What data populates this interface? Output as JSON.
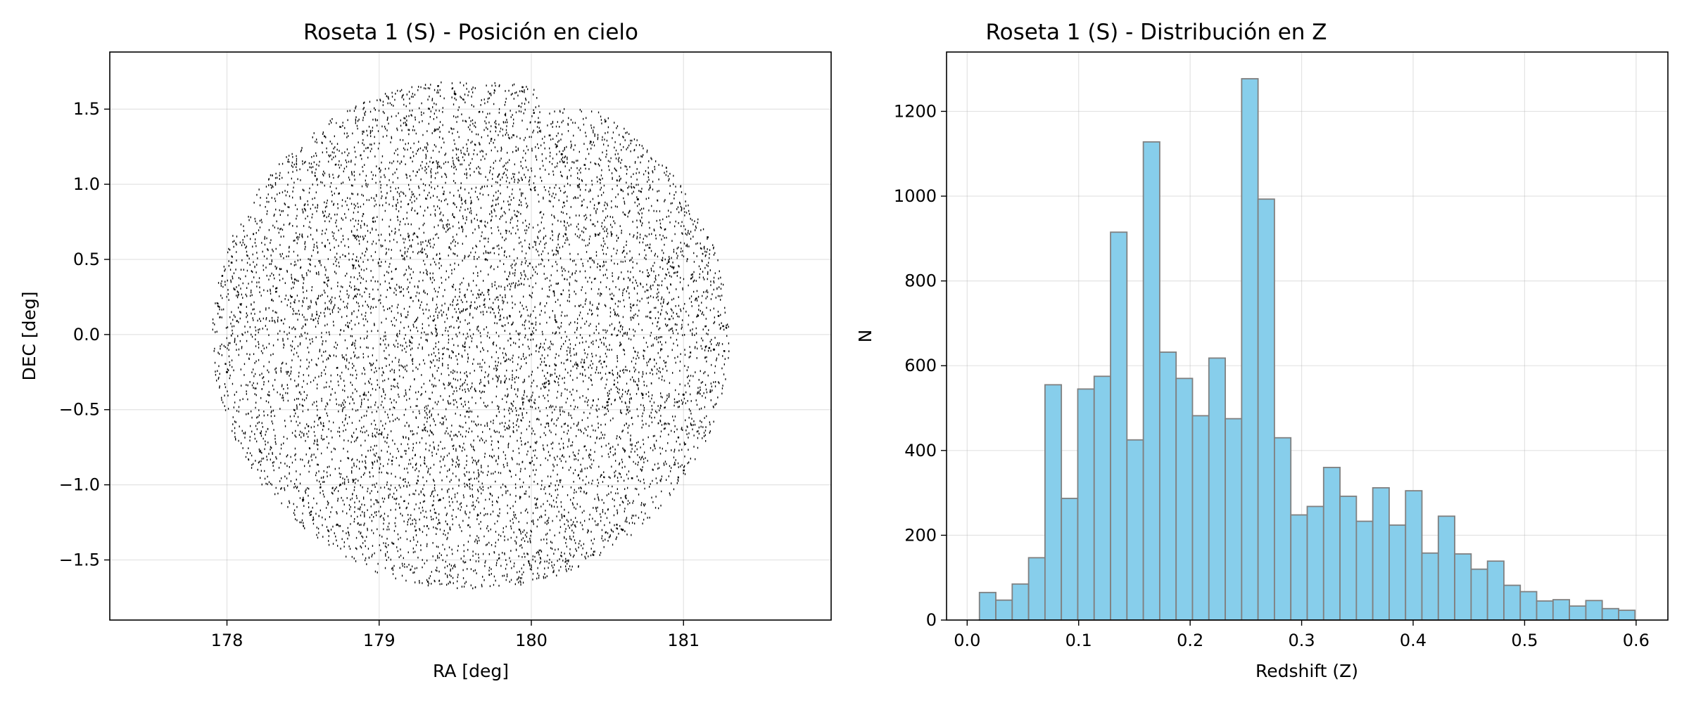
{
  "chart_data": [
    {
      "type": "scatter",
      "title": "Roseta 1 (S) - Posición en cielo",
      "xlabel": "RA [deg]",
      "ylabel": "DEC [deg]",
      "xlim": [
        177.23,
        181.97
      ],
      "ylim": [
        -1.9,
        1.88
      ],
      "xticks": [
        178,
        179,
        180,
        181
      ],
      "xtick_labels": [
        "178",
        "179",
        "180",
        "181"
      ],
      "yticks": [
        -1.5,
        -1.0,
        -0.5,
        0.0,
        0.5,
        1.0,
        1.5
      ],
      "ytick_labels": [
        "−1.5",
        "−1.0",
        "−0.5",
        "0.0",
        "0.5",
        "1.0",
        "1.5"
      ],
      "grid": true,
      "marker_color": "#000000",
      "footprint": {
        "center_ra": 179.6,
        "center_dec": 0.0,
        "radius_deg": 1.7,
        "approx_points": 12000
      },
      "representative_points": [
        {
          "ra": 178.0,
          "dec": -0.25
        },
        {
          "ra": 178.5,
          "dec": -1.1
        },
        {
          "ra": 178.9,
          "dec": -0.4
        },
        {
          "ra": 179.1,
          "dec": -0.3
        },
        {
          "ra": 179.4,
          "dec": -1.1
        },
        {
          "ra": 179.5,
          "dec": 1.6
        },
        {
          "ra": 179.7,
          "dec": 0.5
        },
        {
          "ra": 180.0,
          "dec": 0.0
        },
        {
          "ra": 180.2,
          "dec": 1.2
        },
        {
          "ra": 180.3,
          "dec": -0.2
        },
        {
          "ra": 180.5,
          "dec": -0.45
        },
        {
          "ra": 180.7,
          "dec": 0.9
        },
        {
          "ra": 181.0,
          "dec": -0.4
        },
        {
          "ra": 181.2,
          "dec": -0.1
        },
        {
          "ra": 180.6,
          "dec": -1.3
        }
      ]
    },
    {
      "type": "bar",
      "title": "Roseta 1 (S) - Distribución en Z",
      "xlabel": "Redshift (Z)",
      "ylabel": "N",
      "xlim": [
        -0.0185,
        0.6285
      ],
      "ylim": [
        0,
        1340
      ],
      "xticks": [
        0.0,
        0.1,
        0.2,
        0.3,
        0.4,
        0.5,
        0.6
      ],
      "xtick_labels": [
        "0.0",
        "0.1",
        "0.2",
        "0.3",
        "0.4",
        "0.5",
        "0.6"
      ],
      "yticks": [
        0,
        200,
        400,
        600,
        800,
        1000,
        1200
      ],
      "ytick_labels": [
        "0",
        "200",
        "400",
        "600",
        "800",
        "1000",
        "1200"
      ],
      "grid": true,
      "bar_color": "#87ceeb",
      "edge_color": "#808080",
      "bin_start": 0.011,
      "bin_width": 0.0147,
      "values": [
        65,
        47,
        85,
        147,
        555,
        287,
        545,
        575,
        915,
        425,
        1128,
        632,
        570,
        482,
        618,
        475,
        1277,
        993,
        430,
        248,
        268,
        360,
        292,
        233,
        312,
        224,
        305,
        158,
        245,
        156,
        120,
        139,
        82,
        67,
        45,
        48,
        33,
        46,
        27,
        23
      ]
    }
  ]
}
